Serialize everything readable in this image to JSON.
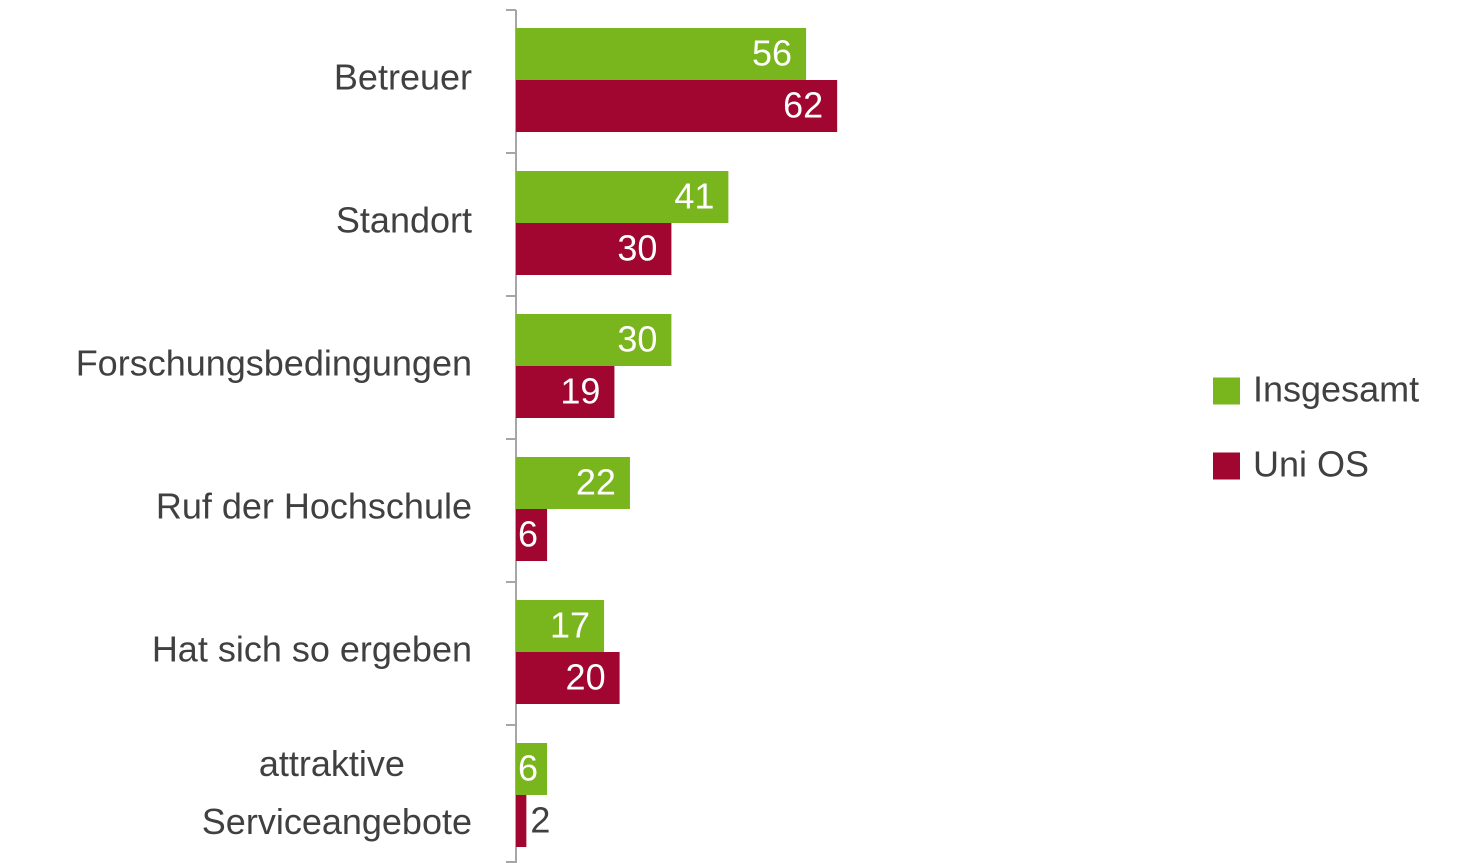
{
  "chart_data": {
    "type": "hbar",
    "categories": [
      "Betreuer",
      "Standort",
      "Forschungsbedingungen",
      "Ruf der Hochschule",
      "Hat sich so ergeben",
      "attraktive Serviceangebote"
    ],
    "series": [
      {
        "name": "Insgesamt",
        "color": "#79b51c",
        "values": [
          56,
          41,
          30,
          22,
          17,
          6
        ]
      },
      {
        "name": "Uni OS",
        "color": "#a0062f",
        "values": [
          62,
          30,
          19,
          6,
          20,
          2
        ]
      }
    ],
    "xlim": [
      0,
      100
    ],
    "legend": "right"
  }
}
